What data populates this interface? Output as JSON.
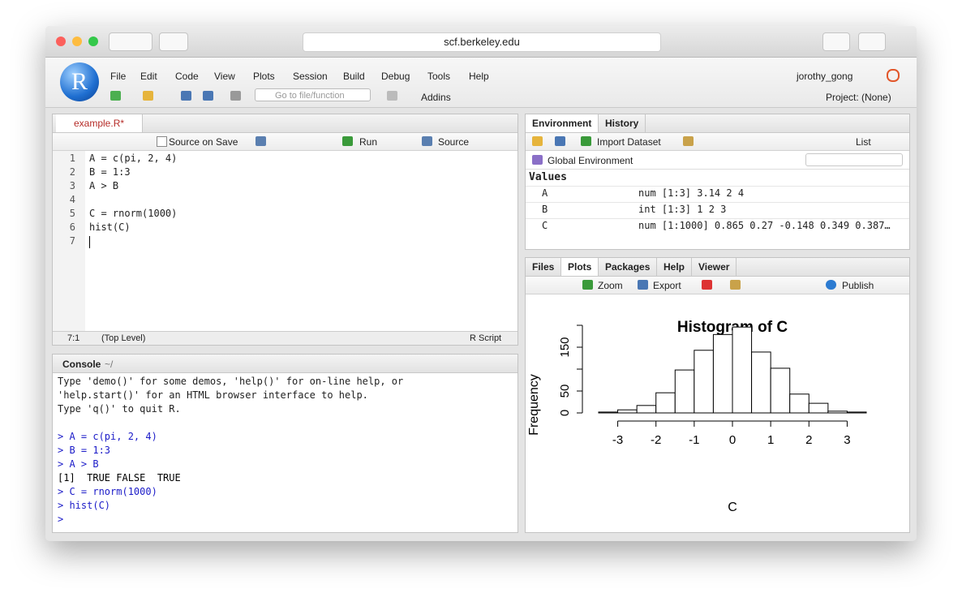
{
  "browser": {
    "url": "scf.berkeley.edu"
  },
  "logo": "R",
  "menu": [
    "File",
    "Edit",
    "Code",
    "View",
    "Plots",
    "Session",
    "Build",
    "Debug",
    "Tools",
    "Help"
  ],
  "user": "jorothy_gong",
  "toolbar": {
    "goto": "Go to file/function",
    "addins": "Addins",
    "project": "Project: (None)"
  },
  "editor": {
    "tab": "example.R*",
    "source_on_save": "Source on Save",
    "run": "Run",
    "source": "Source",
    "line_numbers": [
      1,
      2,
      3,
      4,
      5,
      6,
      7
    ],
    "code": [
      {
        "line": 1,
        "text": "A = c(pi, 2, 4)"
      },
      {
        "line": 2,
        "text": "B = 1:3"
      },
      {
        "line": 3,
        "text": "A > B"
      },
      {
        "line": 5,
        "text": "C = rnorm(1000)"
      },
      {
        "line": 6,
        "text": "hist(C)"
      }
    ],
    "status": {
      "position": "7:1",
      "scope": "(Top Level)",
      "type": "R Script"
    }
  },
  "console": {
    "title": "Console",
    "path": "~/",
    "intro": [
      "Type 'demo()' for some demos, 'help()' for on-line help, or",
      "'help.start()' for an HTML browser interface to help.",
      "Type 'q()' to quit R."
    ],
    "history": [
      "> A = c(pi, 2, 4)",
      "> B = 1:3",
      "> A > B",
      "[1]  TRUE FALSE  TRUE",
      "> C = rnorm(1000)",
      "> hist(C)",
      ">"
    ]
  },
  "environment": {
    "tabs": [
      "Environment",
      "History"
    ],
    "import": "Import Dataset",
    "view": "List",
    "scope": "Global Environment",
    "section": "Values",
    "rows": [
      [
        "A",
        "num [1:3] 3.14 2 4"
      ],
      [
        "B",
        "int [1:3] 1 2 3"
      ],
      [
        "C",
        "num [1:1000] 0.865 0.27 -0.148 0.349 0.387…"
      ]
    ]
  },
  "files": {
    "tabs": [
      "Files",
      "Plots",
      "Packages",
      "Help",
      "Viewer"
    ],
    "active": 1,
    "zoom": "Zoom",
    "export": "Export",
    "publish": "Publish"
  },
  "chart_data": {
    "type": "histogram",
    "title": "Histogram of C",
    "xlabel": "C",
    "ylabel": "Frequency",
    "bins": [
      -3.5,
      -3,
      -2.5,
      -2,
      -1.5,
      -1,
      -0.5,
      0,
      0.5,
      1,
      1.5,
      2,
      2.5,
      3,
      3.5
    ],
    "counts": [
      2,
      7,
      17,
      46,
      98,
      143,
      179,
      196,
      139,
      102,
      43,
      22,
      4,
      2
    ],
    "color": "#ffffff",
    "xlim": [
      -3.5,
      3.5
    ],
    "xticks": [
      -3,
      -2,
      -1,
      0,
      1,
      2,
      3
    ],
    "ylim": [
      0,
      200
    ],
    "yticks": [
      0,
      50,
      {
        "value": 100,
        "label": null
      },
      150,
      {
        "value": 200,
        "label": null
      }
    ]
  }
}
